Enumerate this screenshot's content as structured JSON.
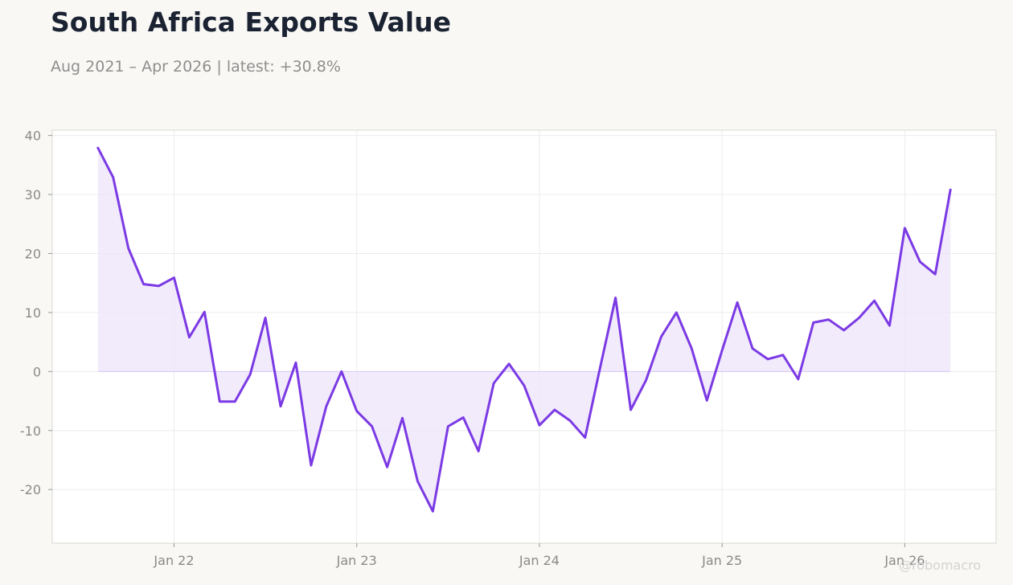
{
  "header": {
    "title": "South Africa Exports Value",
    "subtitle": "Aug 2021 – Apr 2026 | latest: +30.8%"
  },
  "watermark": "@robomacro",
  "colors": {
    "line": "#7b3ae4",
    "fill": "#ede4fb",
    "grid": "#ececec",
    "frame": "#d8d8d0",
    "plot_bg": "#ffffff",
    "page_bg": "#f9f8f5"
  },
  "chart_data": {
    "type": "area",
    "title": "South Africa Exports Value",
    "subtitle": "Aug 2021 – Apr 2026 | latest: +30.8%",
    "xlabel": "",
    "ylabel": "",
    "x": [
      "2021-08",
      "2021-09",
      "2021-10",
      "2021-11",
      "2021-12",
      "2022-01",
      "2022-02",
      "2022-03",
      "2022-04",
      "2022-05",
      "2022-06",
      "2022-07",
      "2022-08",
      "2022-09",
      "2022-10",
      "2022-11",
      "2022-12",
      "2023-01",
      "2023-02",
      "2023-03",
      "2023-04",
      "2023-05",
      "2023-06",
      "2023-07",
      "2023-08",
      "2023-09",
      "2023-10",
      "2023-11",
      "2023-12",
      "2024-01",
      "2024-02",
      "2024-03",
      "2024-04",
      "2024-05",
      "2024-06",
      "2024-07",
      "2024-08",
      "2024-09",
      "2024-10",
      "2024-11",
      "2024-12",
      "2025-01",
      "2025-02",
      "2025-03",
      "2025-04",
      "2025-05",
      "2025-06",
      "2025-07",
      "2025-08",
      "2025-09",
      "2025-10",
      "2025-11",
      "2025-12",
      "2026-01",
      "2026-02",
      "2026-03",
      "2026-04"
    ],
    "values": [
      37.9,
      32.9,
      20.9,
      14.8,
      14.5,
      15.9,
      5.8,
      10.1,
      -5.1,
      -5.1,
      -0.5,
      9.1,
      -5.9,
      1.5,
      -15.9,
      -5.9,
      0.0,
      -6.7,
      -9.3,
      -16.2,
      -7.9,
      -18.6,
      -23.7,
      -9.3,
      -7.8,
      -13.5,
      -2.0,
      1.3,
      -2.4,
      -9.1,
      -6.5,
      -8.3,
      -11.2,
      0.8,
      12.5,
      -6.5,
      -1.5,
      5.9,
      10.0,
      3.9,
      -4.9,
      3.6,
      11.7,
      3.9,
      2.1,
      2.8,
      -1.3,
      8.3,
      8.8,
      7.0,
      9.1,
      12.0,
      7.8,
      24.3,
      18.6,
      16.5,
      30.8
    ],
    "xticks": [
      {
        "date": "2022-01",
        "label": "Jan 22"
      },
      {
        "date": "2023-01",
        "label": "Jan 23"
      },
      {
        "date": "2024-01",
        "label": "Jan 24"
      },
      {
        "date": "2025-01",
        "label": "Jan 25"
      },
      {
        "date": "2026-01",
        "label": "Jan 26"
      }
    ],
    "yticks": [
      40,
      30,
      20,
      10,
      0,
      -10,
      -20
    ],
    "ytick_labels": [
      "40",
      "30",
      "20",
      "10",
      "0",
      "-10",
      "-20"
    ],
    "xlim": [
      "2021-05",
      "2026-07"
    ],
    "ylim": [
      -29.1,
      40.9
    ],
    "grid": true,
    "legend": "none"
  }
}
